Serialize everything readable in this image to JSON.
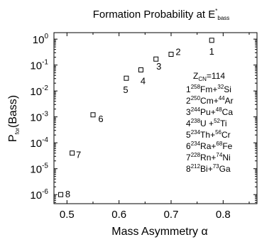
{
  "chart_data": {
    "type": "scatter",
    "title": {
      "main": "Formation Probability at E",
      "sup": "*",
      "sub": "bass"
    },
    "xlabel": "Mass Asymmetry α",
    "ylabel": {
      "main": "P",
      "sub": "for",
      "rest": "(Bass)"
    },
    "xlim": [
      0.475,
      0.865
    ],
    "ylim_exponent": [
      -6.35,
      0.25
    ],
    "y_scale": "log",
    "x_ticks": [
      {
        "value": 0.5,
        "label": "0.5"
      },
      {
        "value": 0.6,
        "label": "0.6"
      },
      {
        "value": 0.7,
        "label": "0.7"
      },
      {
        "value": 0.8,
        "label": "0.8"
      }
    ],
    "y_ticks": [
      {
        "exp": 0,
        "label": "0"
      },
      {
        "exp": -1,
        "label": "-1"
      },
      {
        "exp": -2,
        "label": "-2"
      },
      {
        "exp": -3,
        "label": "-3"
      },
      {
        "exp": -4,
        "label": "-4"
      },
      {
        "exp": -5,
        "label": "-5"
      },
      {
        "exp": -6,
        "label": "-6"
      }
    ],
    "y_tick_base": "10",
    "points": [
      {
        "label": "1",
        "x": 0.778,
        "y": 0.9
      },
      {
        "label": "2",
        "x": 0.7,
        "y": 0.26
      },
      {
        "label": "3",
        "x": 0.671,
        "y": 0.17
      },
      {
        "label": "4",
        "x": 0.642,
        "y": 0.065
      },
      {
        "label": "5",
        "x": 0.614,
        "y": 0.031
      },
      {
        "label": "6",
        "x": 0.55,
        "y": 0.0012
      },
      {
        "label": "7",
        "x": 0.51,
        "y": 4e-05
      },
      {
        "label": "8",
        "x": 0.488,
        "y": 1e-06
      }
    ],
    "legend": {
      "zcn": {
        "main": "Z",
        "sub": "CN",
        "rest": "=114"
      },
      "entries": [
        {
          "num": "1",
          "a1": "258",
          "e1": "Fm",
          "sep": "+",
          "a2": "32",
          "e2": "Si"
        },
        {
          "num": "2",
          "a1": "250",
          "e1": "Cm",
          "sep": "+",
          "a2": "44",
          "e2": "Ar"
        },
        {
          "num": "3",
          "a1": "244",
          "e1": "Pu",
          "sep": "+",
          "a2": "48",
          "e2": "Ca"
        },
        {
          "num": "4",
          "a1": "238",
          "e1": "U",
          "sep": " +",
          "a2": "52",
          "e2": "Ti"
        },
        {
          "num": "5",
          "a1": "234",
          "e1": "Th",
          "sep": "+",
          "a2": "56",
          "e2": "Cr"
        },
        {
          "num": "6",
          "a1": "234",
          "e1": "Ra",
          "sep": "+",
          "a2": "68",
          "e2": "Fe"
        },
        {
          "num": "7",
          "a1": "228",
          "e1": "Rn",
          "sep": "+",
          "a2": "74",
          "e2": "Ni"
        },
        {
          "num": "8",
          "a1": "212",
          "e1": "Bi",
          "sep": "+",
          "a2": "73",
          "e2": "Ga"
        }
      ]
    }
  }
}
